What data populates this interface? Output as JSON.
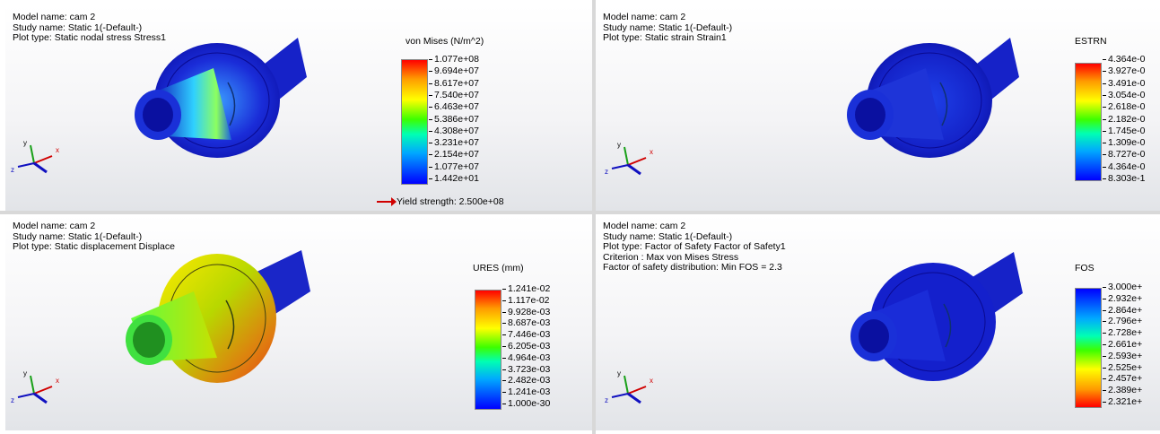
{
  "panels": [
    {
      "info": [
        "Model name: cam 2",
        "Study name: Static 1(-Default-)",
        "Plot type: Static nodal stress Stress1"
      ],
      "legend_title": "von Mises (N/m^2)",
      "ticks": [
        "1.077e+08",
        "9.694e+07",
        "8.617e+07",
        "7.540e+07",
        "6.463e+07",
        "5.386e+07",
        "4.308e+07",
        "3.231e+07",
        "2.154e+07",
        "1.077e+07",
        "1.442e+01"
      ],
      "yield": "Yield strength: 2.500e+08"
    },
    {
      "info": [
        "Model name: cam 2",
        "Study name: Static 1(-Default-)",
        "Plot type: Static strain Strain1"
      ],
      "legend_title": "ESTRN",
      "ticks": [
        "4.364e-0",
        "3.927e-0",
        "3.491e-0",
        "3.054e-0",
        "2.618e-0",
        "2.182e-0",
        "1.745e-0",
        "1.309e-0",
        "8.727e-0",
        "4.364e-0",
        "8.303e-1"
      ]
    },
    {
      "info": [
        "Model name: cam 2",
        "Study name: Static 1(-Default-)",
        "Plot type: Static displacement Displace"
      ],
      "legend_title": "URES (mm)",
      "ticks": [
        "1.241e-02",
        "1.117e-02",
        "9.928e-03",
        "8.687e-03",
        "7.446e-03",
        "6.205e-03",
        "4.964e-03",
        "3.723e-03",
        "2.482e-03",
        "1.241e-03",
        "1.000e-30"
      ]
    },
    {
      "info": [
        "Model name: cam 2",
        "Study name: Static 1(-Default-)",
        "Plot type: Factor of Safety Factor of Safety1",
        "Criterion : Max von Mises Stress",
        "Factor of safety distribution: Min FOS = 2.3"
      ],
      "legend_title": "FOS",
      "ticks": [
        "3.000e+",
        "2.932e+",
        "2.864e+",
        "2.796e+",
        "2.728e+",
        "2.661e+",
        "2.593e+",
        "2.525e+",
        "2.457e+",
        "2.389e+",
        "2.321e+"
      ]
    }
  ],
  "triad": {
    "x": "x",
    "y": "y",
    "z": "z"
  },
  "colors": {
    "model_blue": "#1010d0",
    "axis_x": "#d00000",
    "axis_y": "#18a018",
    "axis_z": "#1010c0",
    "arrow": "#d00000"
  }
}
